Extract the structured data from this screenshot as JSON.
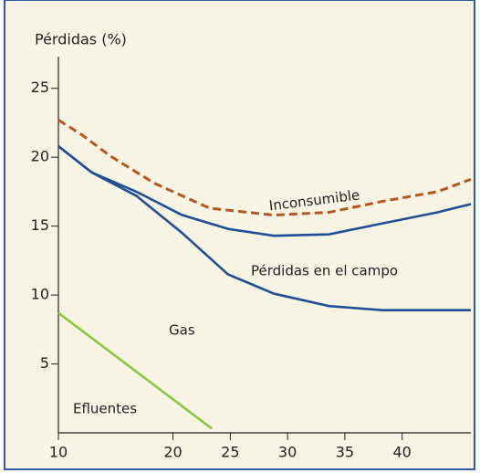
{
  "chart_data": {
    "type": "line",
    "ylabel": "Pérdidas (%)",
    "annotations": [
      "Gas"
    ],
    "xlim": [
      10,
      46
    ],
    "xticks": [
      10,
      20,
      25,
      30,
      35,
      40
    ],
    "ylim": [
      0,
      27.3
    ],
    "yticks": [
      5,
      10,
      15,
      20,
      25
    ],
    "series": [
      {
        "color": "#b8561f",
        "dashed": true,
        "x": [
          10,
          12.1,
          14.5,
          18.4,
          23.2,
          28.8,
          33.6,
          38.3,
          43.1,
          46
        ],
        "values": [
          22.7,
          21.6,
          20.1,
          18.1,
          16.3,
          15.8,
          16.0,
          16.8,
          17.5,
          18.4
        ]
      },
      {
        "name": "Inconsumible",
        "color": "#1f4e96",
        "x": [
          10,
          12.9,
          16.8,
          20.8,
          24.8,
          28.8,
          33.6,
          38.3,
          43.1,
          46
        ],
        "values": [
          20.8,
          18.9,
          17.5,
          15.8,
          14.8,
          14.3,
          14.4,
          15.2,
          16.0,
          16.6
        ]
      },
      {
        "name": "Pérdidas en el campo",
        "color": "#1f4e96",
        "x": [
          10,
          12.9,
          16.8,
          20.8,
          24.8,
          28.8,
          33.6,
          38.3,
          43.1,
          46
        ],
        "values": [
          20.8,
          18.9,
          17.2,
          14.5,
          11.5,
          10.1,
          9.2,
          8.9,
          8.9,
          8.9
        ]
      },
      {
        "name": "Efluentes",
        "color": "#8dc63f",
        "x": [
          10,
          23.4
        ],
        "values": [
          8.7,
          0.3
        ]
      }
    ]
  }
}
